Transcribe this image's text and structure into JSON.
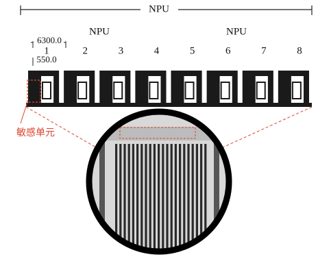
{
  "header": {
    "title": "NPU"
  },
  "groups": [
    {
      "label": "NPU"
    },
    {
      "label": "NPU"
    }
  ],
  "dimensions": {
    "width": "6300.0",
    "height": "550.0"
  },
  "element_numbers": [
    "1",
    "2",
    "3",
    "4",
    "5",
    "6",
    "7",
    "8"
  ],
  "annotation": "敏感单元"
}
